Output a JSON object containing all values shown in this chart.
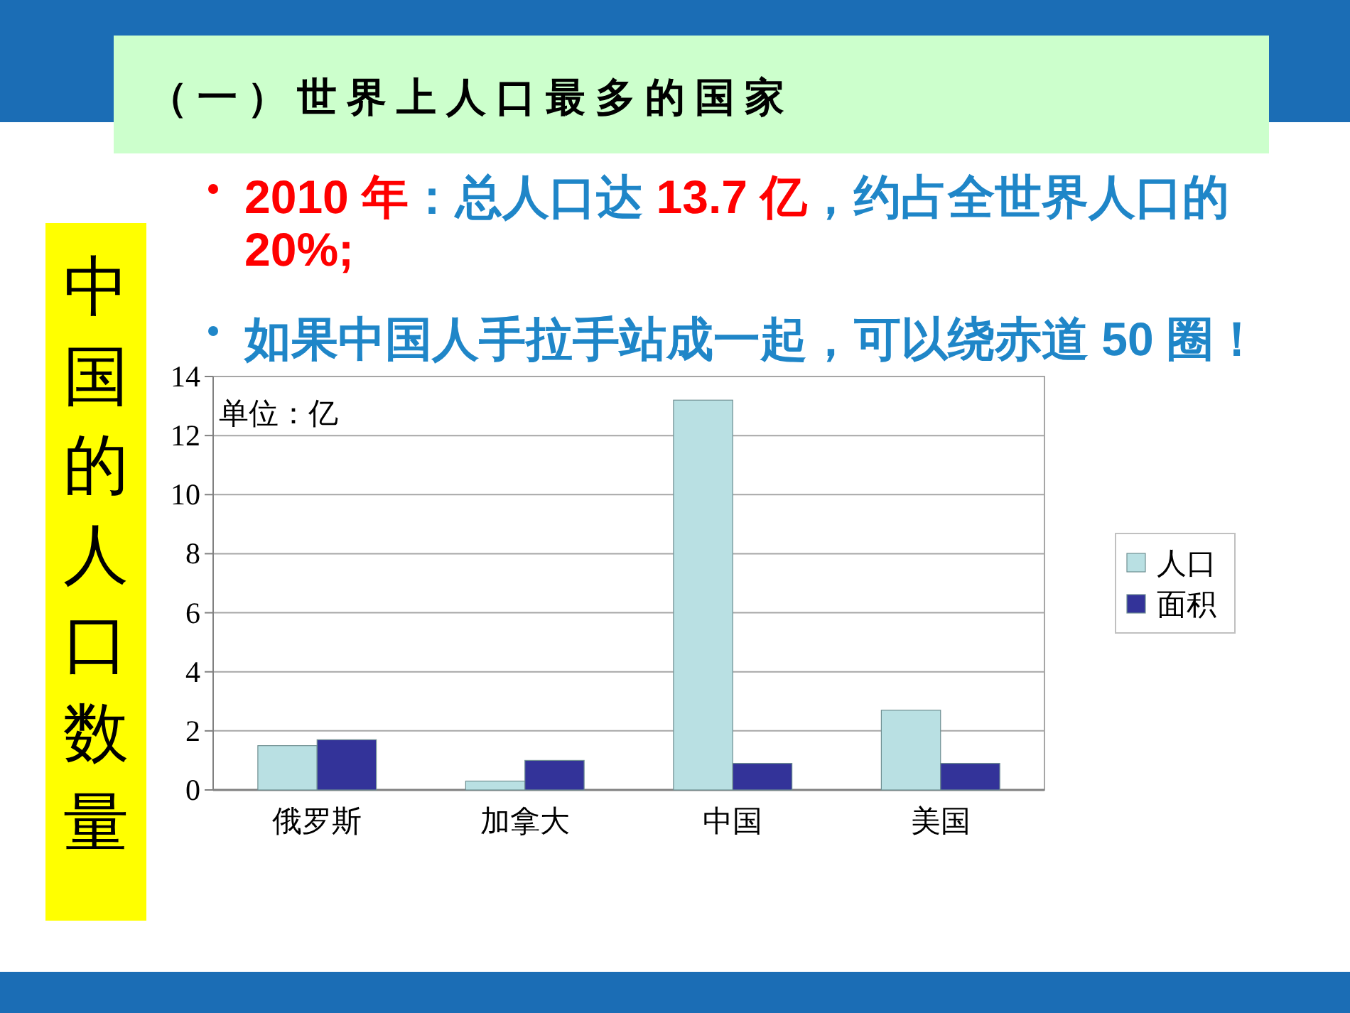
{
  "chart_data": {
    "type": "bar",
    "title": "（一）世界上人口最多的国家",
    "subtitle": "中国的人口数量",
    "ylabel": "单位：亿",
    "annotations": [
      "2010 年：总人口达 13.7 亿，约占全世界人口的 20%;",
      "如果中国人手拉手站成一起，可以绕赤道 50 圈！"
    ],
    "categories": [
      "俄罗斯",
      "加拿大",
      "中国",
      "美国"
    ],
    "series": [
      {
        "name": "人口",
        "color": "#b9e0e3",
        "values": [
          1.5,
          0.3,
          13.2,
          2.7
        ]
      },
      {
        "name": "面积",
        "color": "#333399",
        "values": [
          1.7,
          1.0,
          0.9,
          0.9
        ]
      }
    ],
    "ylim": [
      0,
      14
    ],
    "yticks": [
      0,
      2,
      4,
      6,
      8,
      10,
      12,
      14
    ],
    "grid": "y",
    "legend": "right"
  }
}
